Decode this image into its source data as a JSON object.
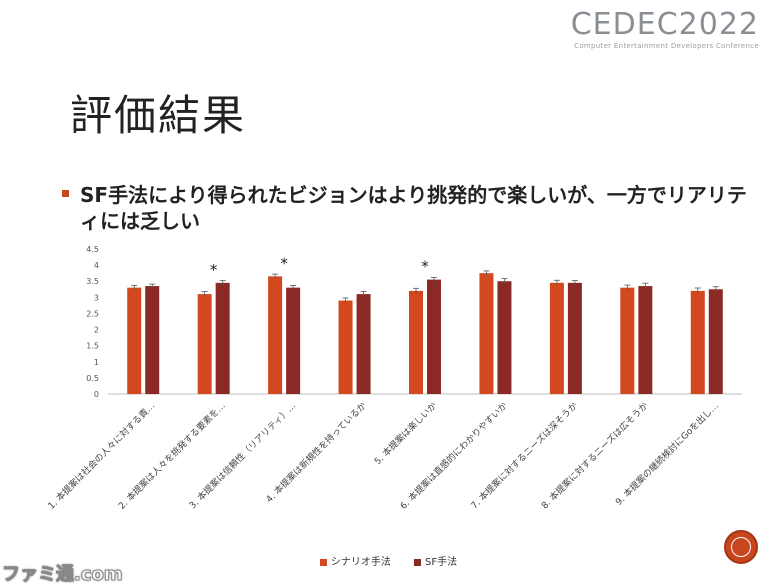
{
  "logo": {
    "main": "CEDEC2022",
    "sub": "Computer Entertainment Developers Conference"
  },
  "slide": {
    "title": "評価結果",
    "bullet": "SF手法により得られたビジョンはより挑発的で楽しいが、一方でリアリティには乏しい"
  },
  "chart_data": {
    "type": "bar",
    "categories": [
      "1. 本提案は社会の人々に対する責…",
      "2. 本提案は人々を挑発する要素を…",
      "3. 本提案は信頼性（リアリティ）…",
      "4. 本提案は新規性を持っているか",
      "5. 本提案は楽しいか",
      "6. 本提案は直感的にわかりやすいか",
      "7. 本提案に対するニーズは深そうか",
      "8. 本提案に対するニーズは広そうか",
      "9. 本提案の継続検討にGoを出し…"
    ],
    "series": [
      {
        "name": "シナリオ手法",
        "values": [
          3.3,
          3.1,
          3.65,
          2.9,
          3.2,
          3.75,
          3.45,
          3.3,
          3.2
        ],
        "errors": [
          0.07,
          0.08,
          0.07,
          0.08,
          0.08,
          0.07,
          0.08,
          0.08,
          0.09
        ]
      },
      {
        "name": "SF手法",
        "values": [
          3.35,
          3.45,
          3.3,
          3.1,
          3.55,
          3.5,
          3.45,
          3.35,
          3.25
        ],
        "errors": [
          0.06,
          0.07,
          0.07,
          0.08,
          0.07,
          0.08,
          0.07,
          0.09,
          0.08
        ]
      }
    ],
    "significance": [
      "",
      "*",
      "*",
      "",
      "*",
      "",
      "",
      "",
      ""
    ],
    "yticks": [
      "0",
      "0.5",
      "1",
      "1.5",
      "2",
      "2.5",
      "3",
      "3.5",
      "4",
      "4.5"
    ],
    "ylim": [
      0,
      4.5
    ],
    "grid": false,
    "legend_position": "bottom",
    "colors": {
      "シナリオ手法": "#d4481f",
      "SF手法": "#8b2a24"
    }
  },
  "watermark": "ファミ通.com"
}
